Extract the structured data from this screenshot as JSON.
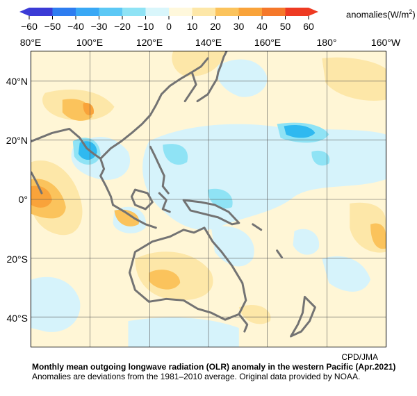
{
  "colorbar": {
    "ticks": [
      "−60",
      "−50",
      "−40",
      "−30",
      "−20",
      "−10",
      "0",
      "10",
      "20",
      "30",
      "40",
      "50",
      "60"
    ],
    "colors": [
      "#3b3bd6",
      "#2e7df0",
      "#39a8f5",
      "#5cc8f5",
      "#8fe3f5",
      "#d9f6fb",
      "#fff8dc",
      "#fde7a8",
      "#fbc35c",
      "#f9a33a",
      "#f5782a",
      "#ee3a22"
    ],
    "unit_base": "anomalies(W/m",
    "unit_sup": "2",
    "unit_end": ")"
  },
  "map": {
    "lon_labels": [
      "80°E",
      "100°E",
      "120°E",
      "140°E",
      "160°E",
      "180°",
      "160°W"
    ],
    "lat_labels": [
      "40°N",
      "20°N",
      "0°",
      "20°S",
      "40°S"
    ],
    "coast_color": "#737373",
    "grid_color": "#555555"
  },
  "credit": "CPD/JMA",
  "caption": {
    "title": "Monthly mean outgoing longwave radiation (OLR) anomaly in the western Pacific (Apr.2021)",
    "note": "Anomalies are deviations from the 1981–2010 average. Original data provided by NOAA."
  }
}
